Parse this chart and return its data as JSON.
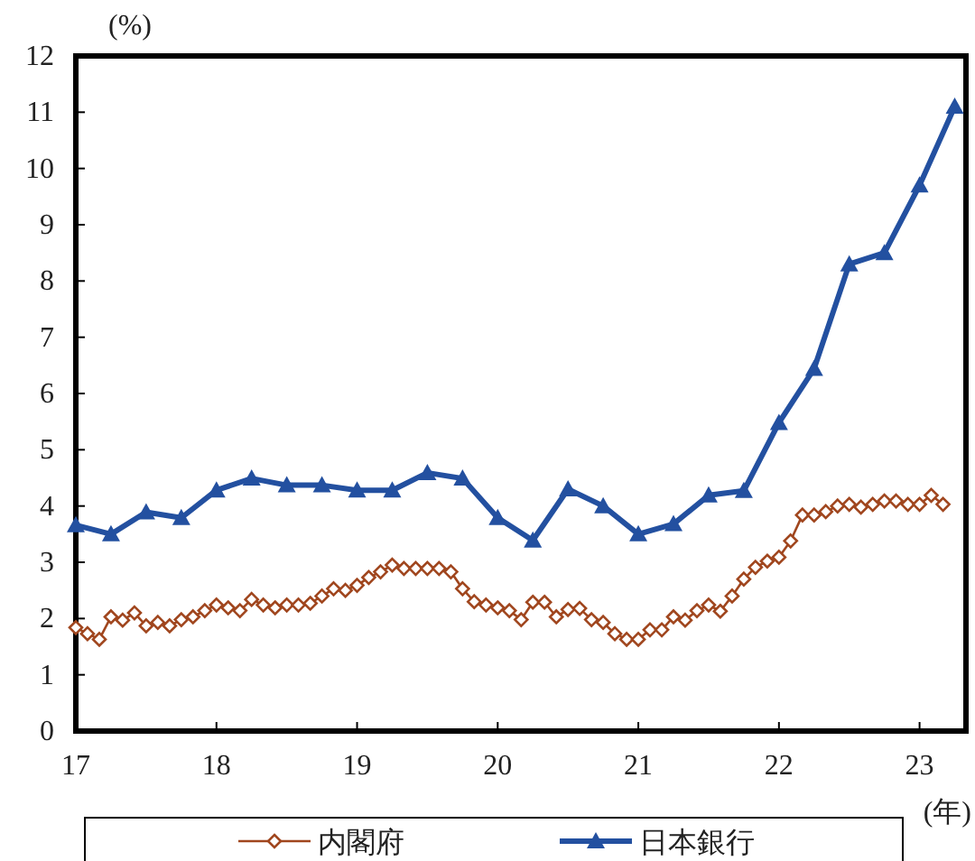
{
  "chart_data": {
    "type": "line",
    "ylabel": "(%)",
    "xlabel": "(年)",
    "xlim": [
      17,
      23.33
    ],
    "xticks": [
      17,
      18,
      19,
      20,
      21,
      22,
      23
    ],
    "ylim": [
      0,
      12
    ],
    "yticks": [
      0,
      1,
      2,
      3,
      4,
      5,
      6,
      7,
      8,
      9,
      10,
      11,
      12
    ],
    "grid": false,
    "legend": "bottom",
    "series": [
      {
        "name": "内閣府",
        "color": "#a0461e",
        "marker": "diamond",
        "x": [
          17,
          17.083,
          17.167,
          17.25,
          17.333,
          17.417,
          17.5,
          17.583,
          17.667,
          17.75,
          17.833,
          17.917,
          18,
          18.083,
          18.167,
          18.25,
          18.333,
          18.417,
          18.5,
          18.583,
          18.667,
          18.75,
          18.833,
          18.917,
          19,
          19.083,
          19.167,
          19.25,
          19.333,
          19.417,
          19.5,
          19.583,
          19.667,
          19.75,
          19.833,
          19.917,
          20,
          20.083,
          20.167,
          20.25,
          20.333,
          20.417,
          20.5,
          20.583,
          20.667,
          20.75,
          20.833,
          20.917,
          21,
          21.083,
          21.167,
          21.25,
          21.333,
          21.417,
          21.5,
          21.583,
          21.667,
          21.75,
          21.833,
          21.917,
          22,
          22.083,
          22.167,
          22.25,
          22.333,
          22.417,
          22.5,
          22.583,
          22.667,
          22.75,
          22.833,
          22.917,
          23,
          23.083,
          23.167
        ],
        "values": [
          1.84,
          1.73,
          1.63,
          2.03,
          1.97,
          2.1,
          1.87,
          1.93,
          1.87,
          1.98,
          2.03,
          2.14,
          2.24,
          2.19,
          2.14,
          2.34,
          2.24,
          2.19,
          2.24,
          2.24,
          2.27,
          2.4,
          2.53,
          2.5,
          2.59,
          2.73,
          2.83,
          2.95,
          2.89,
          2.89,
          2.89,
          2.89,
          2.83,
          2.53,
          2.3,
          2.24,
          2.19,
          2.14,
          1.98,
          2.29,
          2.29,
          2.03,
          2.16,
          2.18,
          1.98,
          1.93,
          1.73,
          1.63,
          1.63,
          1.8,
          1.8,
          2.03,
          1.97,
          2.14,
          2.24,
          2.13,
          2.4,
          2.7,
          2.91,
          3.02,
          3.09,
          3.38,
          3.84,
          3.84,
          3.9,
          4.0,
          4.03,
          3.98,
          4.03,
          4.09,
          4.09,
          4.03,
          4.03,
          4.19,
          4.03
        ]
      },
      {
        "name": "日本銀行",
        "color": "#2350a0",
        "marker": "triangle",
        "x": [
          17,
          17.25,
          17.5,
          17.75,
          18,
          18.25,
          18.5,
          18.75,
          19,
          19.25,
          19.5,
          19.75,
          20,
          20.25,
          20.5,
          20.75,
          21,
          21.25,
          21.5,
          21.75,
          22,
          22.25,
          22.5,
          22.75,
          23,
          23.25
        ],
        "values": [
          3.66,
          3.5,
          3.89,
          3.79,
          4.28,
          4.49,
          4.37,
          4.37,
          4.28,
          4.28,
          4.59,
          4.49,
          3.79,
          3.39,
          4.3,
          4.0,
          3.5,
          3.68,
          4.19,
          4.27,
          5.48,
          6.44,
          8.3,
          8.5,
          9.7,
          11.1
        ]
      }
    ]
  }
}
